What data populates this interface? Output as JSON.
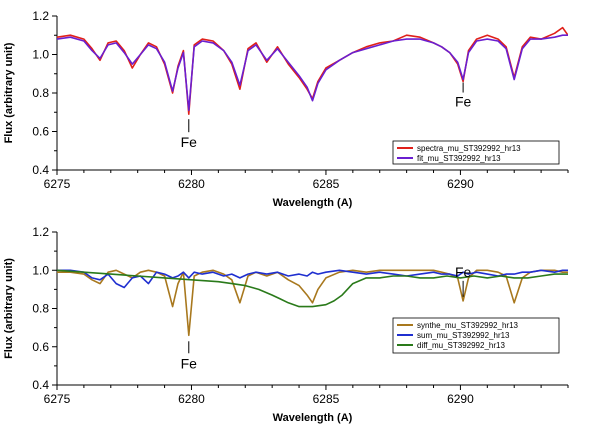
{
  "chart_data": [
    {
      "type": "line",
      "xlabel": "Wavelength (A)",
      "ylabel": "Flux (arbitrary unit)",
      "xlim": [
        6275,
        6294
      ],
      "ylim": [
        0.4,
        1.2
      ],
      "xticks": [
        6275,
        6280,
        6285,
        6290
      ],
      "yticks": [
        0.4,
        0.6,
        0.8,
        1.0,
        1.2
      ],
      "xtick_labels": [
        "6275",
        "6280",
        "6285",
        "6290"
      ],
      "ytick_labels": [
        "0.4",
        "0.6",
        "0.8",
        "1.0",
        "1.2"
      ],
      "legend_position": "bottom-right",
      "annotations": [
        {
          "text": "Fe",
          "x": 6279.9,
          "y": 0.69
        },
        {
          "text": "Fe",
          "x": 6290.1,
          "y": 0.87
        }
      ],
      "series": [
        {
          "name": "spectra_mu_ST392992_hr13",
          "color": "#e0201a",
          "x": [
            6275.0,
            6275.5,
            6276.0,
            6276.3,
            6276.6,
            6276.9,
            6277.2,
            6277.5,
            6277.8,
            6278.1,
            6278.4,
            6278.7,
            6279.0,
            6279.3,
            6279.5,
            6279.7,
            6279.9,
            6280.1,
            6280.4,
            6280.8,
            6281.2,
            6281.5,
            6281.8,
            6282.1,
            6282.4,
            6282.8,
            6283.2,
            6283.6,
            6284.0,
            6284.3,
            6284.5,
            6284.7,
            6285.0,
            6285.5,
            6286.0,
            6286.5,
            6287.0,
            6287.5,
            6288.0,
            6288.5,
            6289.0,
            6289.3,
            6289.6,
            6289.9,
            6290.1,
            6290.3,
            6290.6,
            6291.0,
            6291.4,
            6291.7,
            6292.0,
            6292.3,
            6292.6,
            6293.0,
            6293.5,
            6293.8,
            6294.0
          ],
          "values": [
            1.09,
            1.1,
            1.08,
            1.03,
            0.97,
            1.06,
            1.07,
            1.02,
            0.93,
            1.0,
            1.06,
            1.04,
            0.95,
            0.8,
            0.94,
            1.02,
            0.69,
            1.05,
            1.08,
            1.07,
            1.02,
            0.95,
            0.82,
            1.03,
            1.06,
            0.96,
            1.04,
            0.95,
            0.88,
            0.82,
            0.77,
            0.86,
            0.93,
            0.97,
            1.01,
            1.04,
            1.06,
            1.07,
            1.1,
            1.09,
            1.06,
            1.04,
            1.01,
            0.95,
            0.86,
            1.02,
            1.08,
            1.1,
            1.08,
            1.04,
            0.88,
            1.04,
            1.09,
            1.08,
            1.11,
            1.14,
            1.1
          ]
        },
        {
          "name": "fit_mu_ST392992_hr13",
          "color": "#6a1fd0",
          "x": [
            6275.0,
            6275.5,
            6276.0,
            6276.3,
            6276.6,
            6276.9,
            6277.2,
            6277.5,
            6277.8,
            6278.1,
            6278.4,
            6278.7,
            6279.0,
            6279.3,
            6279.5,
            6279.7,
            6279.9,
            6280.1,
            6280.4,
            6280.8,
            6281.2,
            6281.5,
            6281.8,
            6282.1,
            6282.4,
            6282.8,
            6283.2,
            6283.6,
            6284.0,
            6284.3,
            6284.5,
            6284.7,
            6285.0,
            6285.5,
            6286.0,
            6286.5,
            6287.0,
            6287.5,
            6288.0,
            6288.5,
            6289.0,
            6289.3,
            6289.6,
            6289.9,
            6290.1,
            6290.3,
            6290.6,
            6291.0,
            6291.4,
            6291.7,
            6292.0,
            6292.3,
            6292.6,
            6293.0,
            6293.5,
            6293.8,
            6294.0
          ],
          "values": [
            1.08,
            1.09,
            1.07,
            1.02,
            0.98,
            1.05,
            1.06,
            1.01,
            0.95,
            1.0,
            1.05,
            1.03,
            0.96,
            0.81,
            0.93,
            1.01,
            0.71,
            1.04,
            1.07,
            1.06,
            1.02,
            0.96,
            0.84,
            1.02,
            1.05,
            0.97,
            1.03,
            0.96,
            0.89,
            0.83,
            0.76,
            0.85,
            0.92,
            0.97,
            1.01,
            1.03,
            1.05,
            1.07,
            1.08,
            1.08,
            1.06,
            1.04,
            1.01,
            0.96,
            0.87,
            1.01,
            1.07,
            1.08,
            1.07,
            1.03,
            0.87,
            1.03,
            1.08,
            1.08,
            1.09,
            1.1,
            1.1
          ]
        }
      ]
    },
    {
      "type": "line",
      "xlabel": "Wavelength (A)",
      "ylabel": "Flux (arbitrary unit)",
      "xlim": [
        6275,
        6294
      ],
      "ylim": [
        0.4,
        1.2
      ],
      "xticks": [
        6275,
        6280,
        6285,
        6290
      ],
      "yticks": [
        0.4,
        0.6,
        0.8,
        1.0,
        1.2
      ],
      "xtick_labels": [
        "6275",
        "6280",
        "6285",
        "6290"
      ],
      "ytick_labels": [
        "0.4",
        "0.6",
        "0.8",
        "1.0",
        "1.2"
      ],
      "legend_position": "bottom-right",
      "annotations": [
        {
          "text": "Fe",
          "x": 6279.9,
          "y": 0.66
        },
        {
          "text": "Fe",
          "x": 6290.1,
          "y": 0.84
        }
      ],
      "series": [
        {
          "name": "synthe_mu_ST392992_hr13",
          "color": "#a8781e",
          "x": [
            6275.0,
            6275.5,
            6276.0,
            6276.3,
            6276.6,
            6276.9,
            6277.2,
            6277.5,
            6277.8,
            6278.1,
            6278.4,
            6278.7,
            6279.0,
            6279.3,
            6279.5,
            6279.7,
            6279.9,
            6280.1,
            6280.4,
            6280.8,
            6281.2,
            6281.5,
            6281.8,
            6282.1,
            6282.4,
            6282.8,
            6283.2,
            6283.6,
            6284.0,
            6284.3,
            6284.5,
            6284.7,
            6285.0,
            6285.5,
            6286.0,
            6286.5,
            6287.0,
            6287.5,
            6288.0,
            6288.5,
            6289.0,
            6289.3,
            6289.6,
            6289.9,
            6290.1,
            6290.3,
            6290.6,
            6291.0,
            6291.4,
            6291.7,
            6292.0,
            6292.3,
            6292.6,
            6293.0,
            6293.5,
            6293.8,
            6294.0
          ],
          "values": [
            0.99,
            0.99,
            0.98,
            0.95,
            0.93,
            0.99,
            1.0,
            0.98,
            0.96,
            0.99,
            1.0,
            0.99,
            0.97,
            0.81,
            0.93,
            0.99,
            0.66,
            0.97,
            0.99,
            1.0,
            0.98,
            0.95,
            0.83,
            0.97,
            0.99,
            0.97,
            0.99,
            0.95,
            0.92,
            0.87,
            0.83,
            0.9,
            0.96,
            0.99,
            1.0,
            0.99,
            1.0,
            1.0,
            1.0,
            1.0,
            1.0,
            0.99,
            0.98,
            0.96,
            0.84,
            0.96,
            1.0,
            1.0,
            0.99,
            0.97,
            0.83,
            0.96,
            0.99,
            1.0,
            1.0,
            0.99,
            0.99
          ]
        },
        {
          "name": "sum_mu_ST392992_hr13",
          "color": "#1f2fd0",
          "x": [
            6275.0,
            6275.5,
            6276.0,
            6276.3,
            6276.6,
            6276.9,
            6277.2,
            6277.5,
            6277.8,
            6278.1,
            6278.4,
            6278.7,
            6279.0,
            6279.3,
            6279.5,
            6279.7,
            6279.9,
            6280.1,
            6280.4,
            6280.8,
            6281.2,
            6281.5,
            6281.8,
            6282.1,
            6282.4,
            6282.8,
            6283.2,
            6283.6,
            6284.0,
            6284.3,
            6284.5,
            6284.7,
            6285.0,
            6285.5,
            6286.0,
            6286.5,
            6287.0,
            6287.5,
            6288.0,
            6288.5,
            6289.0,
            6289.3,
            6289.6,
            6289.9,
            6290.1,
            6290.3,
            6290.6,
            6291.0,
            6291.4,
            6291.7,
            6292.0,
            6292.3,
            6292.6,
            6293.0,
            6293.5,
            6293.8,
            6294.0
          ],
          "values": [
            1.0,
            1.0,
            0.99,
            0.96,
            0.95,
            0.98,
            0.93,
            0.91,
            0.96,
            0.97,
            0.93,
            0.99,
            0.98,
            0.96,
            0.97,
            0.99,
            0.96,
            0.99,
            0.98,
            0.99,
            0.97,
            0.98,
            0.96,
            0.98,
            0.99,
            0.98,
            0.99,
            0.97,
            0.98,
            0.97,
            0.99,
            0.98,
            0.99,
            1.0,
            0.99,
            0.98,
            0.99,
            0.98,
            0.97,
            0.98,
            0.99,
            0.98,
            0.98,
            0.97,
            0.99,
            0.98,
            0.99,
            0.98,
            0.97,
            0.98,
            0.98,
            0.99,
            0.99,
            1.0,
            0.99,
            1.0,
            1.0
          ]
        },
        {
          "name": "diff_mu_ST392992_hr13",
          "color": "#2a7a1a",
          "x": [
            6275.0,
            6276.0,
            6277.0,
            6278.0,
            6279.0,
            6280.0,
            6281.0,
            6281.5,
            6282.0,
            6282.5,
            6283.0,
            6283.3,
            6283.6,
            6284.0,
            6284.5,
            6285.0,
            6285.3,
            6285.6,
            6286.0,
            6286.5,
            6287.0,
            6287.5,
            6288.0,
            6288.5,
            6289.0,
            6289.5,
            6290.0,
            6290.5,
            6291.0,
            6291.5,
            6292.0,
            6292.5,
            6293.0,
            6293.5,
            6294.0
          ],
          "values": [
            1.0,
            0.99,
            0.98,
            0.97,
            0.96,
            0.95,
            0.94,
            0.93,
            0.92,
            0.9,
            0.87,
            0.85,
            0.83,
            0.81,
            0.81,
            0.82,
            0.84,
            0.87,
            0.93,
            0.96,
            0.96,
            0.97,
            0.97,
            0.96,
            0.96,
            0.97,
            0.96,
            0.97,
            0.96,
            0.97,
            0.96,
            0.96,
            0.97,
            0.98,
            0.98
          ]
        }
      ]
    }
  ]
}
